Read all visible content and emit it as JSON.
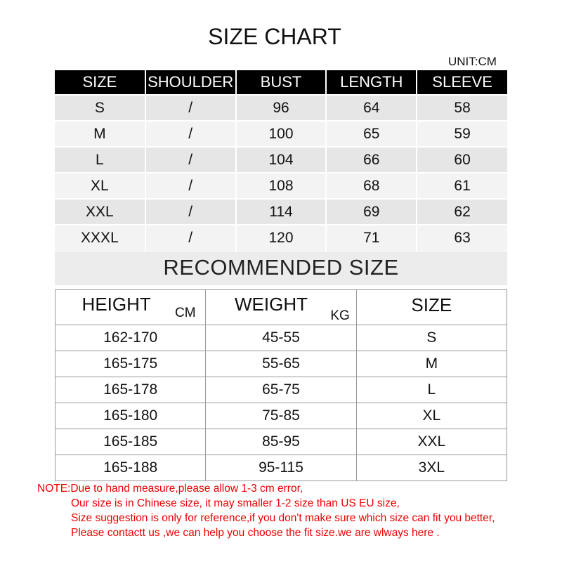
{
  "title": "SIZE CHART",
  "unit": "UNIT:CM",
  "size_table": {
    "headers": [
      "SIZE",
      "SHOULDER",
      "BUST",
      "LENGTH",
      "SLEEVE"
    ],
    "rows": [
      [
        "S",
        "/",
        "96",
        "64",
        "58"
      ],
      [
        "M",
        "/",
        "100",
        "65",
        "59"
      ],
      [
        "L",
        "/",
        "104",
        "66",
        "60"
      ],
      [
        "XL",
        "/",
        "108",
        "68",
        "61"
      ],
      [
        "XXL",
        "/",
        "114",
        "69",
        "62"
      ],
      [
        "XXXL",
        "/",
        "120",
        "71",
        "63"
      ]
    ]
  },
  "recommended": {
    "title": "RECOMMENDED SIZE",
    "headers": {
      "height": "HEIGHT",
      "height_unit": "CM",
      "weight": "WEIGHT",
      "weight_unit": "KG",
      "size": "SIZE"
    },
    "rows": [
      [
        "162-170",
        "45-55",
        "S"
      ],
      [
        "165-175",
        "55-65",
        "M"
      ],
      [
        "165-178",
        "65-75",
        "L"
      ],
      [
        "165-180",
        "75-85",
        "XL"
      ],
      [
        "165-185",
        "85-95",
        "XXL"
      ],
      [
        "165-188",
        "95-115",
        "3XL"
      ]
    ]
  },
  "note": [
    "NOTE:Due to hand measure,please allow 1-3 cm error,",
    "Our size is in Chinese size, it may smaller 1-2 size than US EU size,",
    "Size suggestion is only for reference,if you don't make sure which size can fit you better,",
    "Please contactt us ,we can help you choose the fit size.we are wlways here ."
  ],
  "colors": {
    "header_bg": "#000000",
    "row_gray": "#e6e6e6",
    "row_light": "#f3f3f3",
    "note": "#ee0000"
  }
}
